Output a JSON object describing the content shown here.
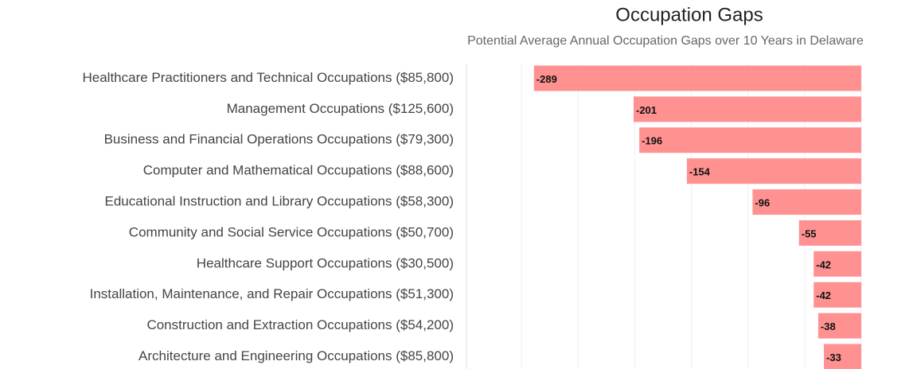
{
  "chart_data": {
    "type": "bar",
    "orientation": "horizontal",
    "title": "Occupation Gaps",
    "subtitle": "Potential Average Annual Occupation Gaps over 10 Years in Delaware",
    "categories": [
      "Healthcare Practitioners and Technical Occupations ($85,800)",
      "Management Occupations ($125,600)",
      "Business and Financial Operations Occupations ($79,300)",
      "Computer and Mathematical Occupations ($88,600)",
      "Educational Instruction and Library Occupations ($58,300)",
      "Community and Social Service Occupations ($50,700)",
      "Healthcare Support Occupations ($30,500)",
      "Installation, Maintenance, and Repair Occupations ($51,300)",
      "Construction and Extraction Occupations ($54,200)",
      "Architecture and Engineering Occupations ($85,800)"
    ],
    "values": [
      -289,
      -201,
      -196,
      -154,
      -96,
      -55,
      -42,
      -42,
      -38,
      -33
    ],
    "color": "#ff9191",
    "xlim": [
      -350,
      0
    ],
    "xticks": [
      -300,
      -250,
      -200,
      -150,
      -100,
      -50,
      0
    ],
    "grid": true
  }
}
